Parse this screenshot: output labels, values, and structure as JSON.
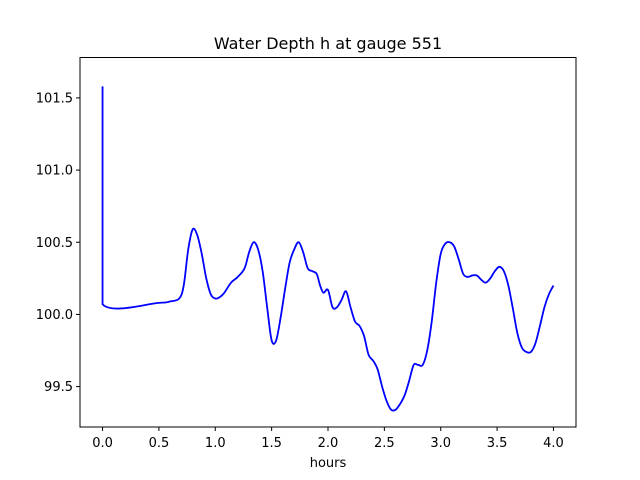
{
  "chart_data": {
    "type": "line",
    "title": "Water Depth h at gauge 551",
    "xlabel": "hours",
    "ylabel": "",
    "xlim": [
      -0.2,
      4.2
    ],
    "ylim": [
      99.22,
      101.78
    ],
    "xticks": [
      0.0,
      0.5,
      1.0,
      1.5,
      2.0,
      2.5,
      3.0,
      3.5,
      4.0
    ],
    "xtick_labels": [
      "0.0",
      "0.5",
      "1.0",
      "1.5",
      "2.0",
      "2.5",
      "3.0",
      "3.5",
      "4.0"
    ],
    "yticks": [
      99.5,
      100.0,
      100.5,
      101.0,
      101.5
    ],
    "ytick_labels": [
      "99.5",
      "100.0",
      "100.5",
      "101.0",
      "101.5"
    ],
    "grid": false,
    "series": [
      {
        "color": "#0000ff",
        "x": [
          0.0,
          0.0,
          0.0,
          0.5,
          0.6,
          0.68,
          0.72,
          0.76,
          0.8,
          0.84,
          0.88,
          0.92,
          0.96,
          1.0,
          1.04,
          1.08,
          1.14,
          1.2,
          1.26,
          1.3,
          1.34,
          1.38,
          1.42,
          1.46,
          1.5,
          1.54,
          1.58,
          1.62,
          1.66,
          1.7,
          1.74,
          1.78,
          1.82,
          1.86,
          1.9,
          1.93,
          1.96,
          2.0,
          2.04,
          2.08,
          2.12,
          2.16,
          2.2,
          2.24,
          2.28,
          2.32,
          2.36,
          2.4,
          2.44,
          2.48,
          2.52,
          2.56,
          2.6,
          2.64,
          2.68,
          2.72,
          2.76,
          2.8,
          2.84,
          2.88,
          2.92,
          2.96,
          3.0,
          3.04,
          3.08,
          3.12,
          3.16,
          3.2,
          3.24,
          3.28,
          3.32,
          3.36,
          3.4,
          3.44,
          3.48,
          3.52,
          3.56,
          3.6,
          3.64,
          3.68,
          3.72,
          3.76,
          3.8,
          3.84,
          3.88,
          3.92,
          3.96,
          4.0
        ],
        "y": [
          101.58,
          100.5,
          100.07,
          100.08,
          100.09,
          100.11,
          100.2,
          100.45,
          100.59,
          100.55,
          100.42,
          100.25,
          100.14,
          100.11,
          100.12,
          100.15,
          100.22,
          100.26,
          100.32,
          100.43,
          100.5,
          100.45,
          100.3,
          100.05,
          99.82,
          99.82,
          99.98,
          100.18,
          100.36,
          100.45,
          100.5,
          100.43,
          100.32,
          100.3,
          100.28,
          100.2,
          100.15,
          100.17,
          100.05,
          100.05,
          100.1,
          100.16,
          100.05,
          99.95,
          99.92,
          99.85,
          99.72,
          99.68,
          99.62,
          99.5,
          99.4,
          99.34,
          99.34,
          99.38,
          99.44,
          99.54,
          99.65,
          99.65,
          99.65,
          99.75,
          99.95,
          100.22,
          100.42,
          100.49,
          100.5,
          100.47,
          100.38,
          100.28,
          100.26,
          100.27,
          100.27,
          100.24,
          100.22,
          100.25,
          100.3,
          100.33,
          100.3,
          100.2,
          100.04,
          99.87,
          99.77,
          99.74,
          99.74,
          99.8,
          99.92,
          100.05,
          100.14,
          100.2
        ]
      }
    ]
  }
}
